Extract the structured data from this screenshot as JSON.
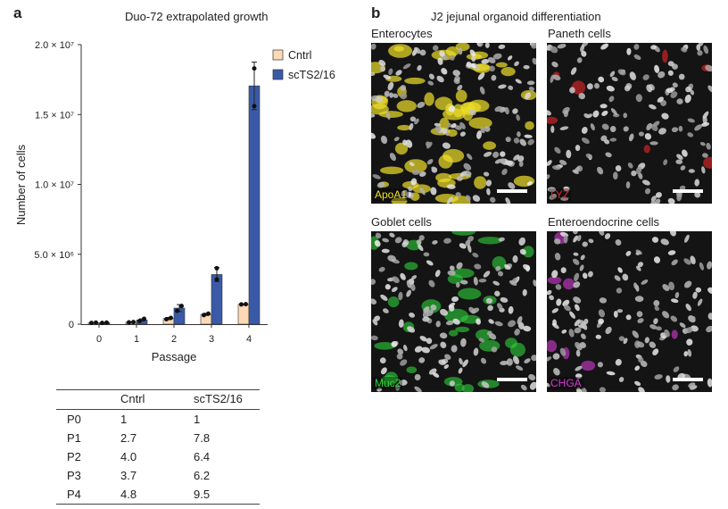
{
  "panel_a": {
    "letter": "a",
    "title": "Duo-72 extrapolated growth"
  },
  "panel_b": {
    "letter": "b",
    "title": "J2 jejunal organoid differentiation"
  },
  "colors": {
    "cntrl": "#fdd9b5",
    "scts": "#3a5aa8",
    "edge": "#333333",
    "yellow": "#f0e02a",
    "red": "#e8262a",
    "green": "#2fd23a",
    "magenta": "#d43bd4"
  },
  "chart_data": {
    "type": "bar",
    "title": "Duo-72 extrapolated growth",
    "xlabel": "Passage",
    "ylabel": "Number of cells",
    "categories": [
      "0",
      "1",
      "2",
      "3",
      "4"
    ],
    "ylim": [
      0,
      20000000
    ],
    "yticks": [
      {
        "value": 0,
        "label": "0"
      },
      {
        "value": 5000000,
        "label": "5.0 × 10⁶"
      },
      {
        "value": 10000000,
        "label": "1.0 × 10⁷"
      },
      {
        "value": 15000000,
        "label": "1.5 × 10⁷"
      },
      {
        "value": 20000000,
        "label": "2.0 × 10⁷"
      }
    ],
    "series": [
      {
        "name": "Cntrl",
        "color": "#fdd9b5",
        "values": [
          100000,
          140000,
          400000,
          700000,
          1420000
        ],
        "errors": [
          0,
          20000,
          80000,
          80000,
          20000
        ],
        "points": [
          [
            90000,
            110000
          ],
          [
            130000,
            150000
          ],
          [
            350000,
            450000
          ],
          [
            650000,
            750000
          ],
          [
            1410000,
            1430000
          ]
        ]
      },
      {
        "name": "scTS2/16",
        "color": "#3a5aa8",
        "values": [
          100000,
          300000,
          1150000,
          3550000,
          17050000
        ],
        "errors": [
          0,
          80000,
          250000,
          500000,
          1700000
        ],
        "points": [
          [
            90000,
            110000
          ],
          [
            220000,
            380000
          ],
          [
            950000,
            1300000
          ],
          [
            3200000,
            4000000
          ],
          [
            15600000,
            18300000
          ]
        ]
      }
    ],
    "legend": [
      "Cntrl",
      "scTS2/16"
    ],
    "legend_position": "top-right"
  },
  "table": {
    "headers": [
      "",
      "Cntrl",
      "scTS2/16"
    ],
    "rows": [
      [
        "P0",
        "1",
        "1"
      ],
      [
        "P1",
        "2.7",
        "7.8"
      ],
      [
        "P2",
        "4.0",
        "6.4"
      ],
      [
        "P3",
        "3.7",
        "6.2"
      ],
      [
        "P4",
        "4.8",
        "9.5"
      ]
    ]
  },
  "micrographs": [
    {
      "label": "Enterocytes",
      "stain": "ApoA1",
      "stain_color": "#f0e02a"
    },
    {
      "label": "Paneth cells",
      "stain": "LYZ",
      "stain_color": "#e8262a"
    },
    {
      "label": "Goblet cells",
      "stain": "Muc2",
      "stain_color": "#2fd23a"
    },
    {
      "label": "Enteroendocrine cells",
      "stain": "CHGA",
      "stain_color": "#d43bd4"
    }
  ]
}
